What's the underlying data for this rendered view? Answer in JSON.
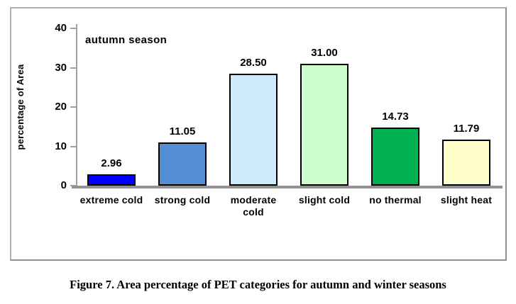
{
  "figure": {
    "caption": "Figure 7. Area percentage of PET categories for autumn and winter seasons"
  },
  "chart_data": {
    "type": "bar",
    "title": "autumn season",
    "xlabel": "",
    "ylabel": "percentage of Area",
    "ylim": [
      0,
      40
    ],
    "yticks": [
      0,
      10,
      20,
      30,
      40
    ],
    "grid": false,
    "legend": null,
    "categories": [
      "extreme cold",
      "strong cold",
      "moderate cold",
      "slight cold",
      "no thermal",
      "slight heat"
    ],
    "category_display": [
      "extreme cold",
      "strong cold",
      "moderate\ncold",
      "slight cold",
      "no thermal",
      "slight heat"
    ],
    "values": [
      2.96,
      11.05,
      28.5,
      31.0,
      14.73,
      11.79
    ],
    "value_labels": [
      "2.96",
      "11.05",
      "28.50",
      "31.00",
      "14.73",
      "11.79"
    ],
    "bar_colors": [
      "#0000FE",
      "#548FD4",
      "#CDEBFA",
      "#CCFFCC",
      "#00B050",
      "#FFFFCC"
    ],
    "bar_border_color": "#000000",
    "axis_color": "#A0A0A0"
  }
}
